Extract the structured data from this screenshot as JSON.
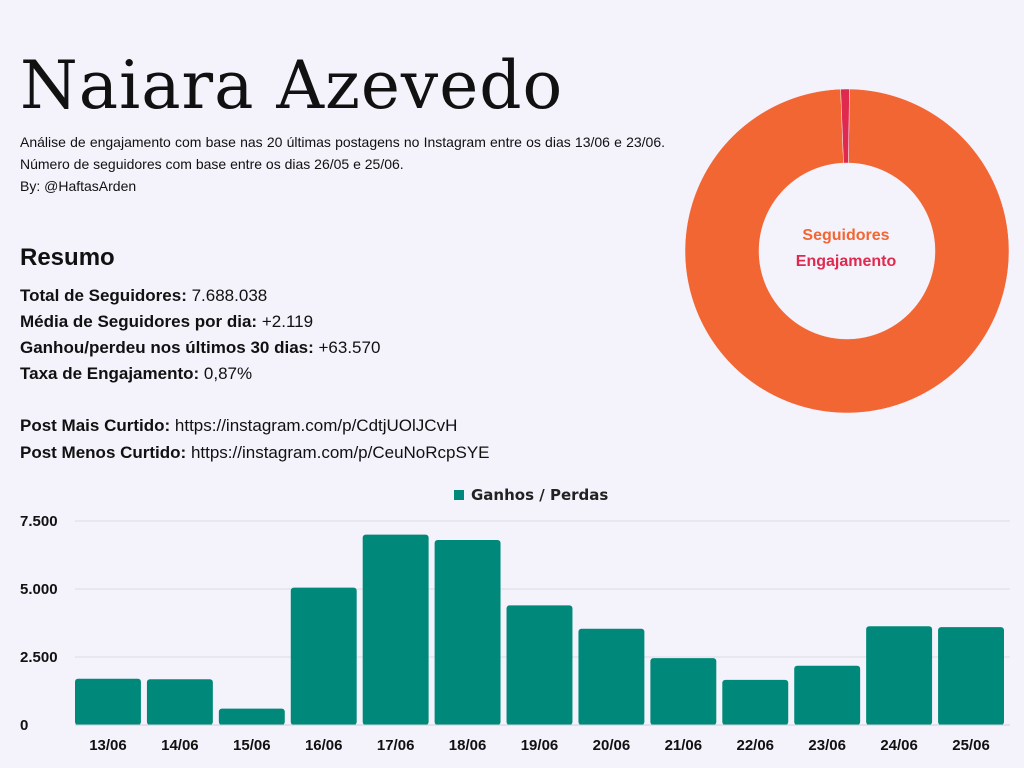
{
  "header": {
    "title": "Naiara Azevedo",
    "description": "Análise de engajamento com base nas 20 últimas postagens no Instagram entre os dias 13/06 e 23/06. Número de seguidores com base entre os dias 26/05 e 25/06.",
    "byline": "By: @HaftasArden"
  },
  "resumo": {
    "title": "Resumo",
    "stats": [
      {
        "label": "Total de Seguidores:",
        "value": " 7.688.038"
      },
      {
        "label": "Média de Seguidores por dia:",
        "value": " +2.119"
      },
      {
        "label": "Ganhou/perdeu nos últimos 30 dias:",
        "value": " +63.570"
      },
      {
        "label": "Taxa de Engajamento:",
        "value": " 0,87%"
      }
    ],
    "links": [
      {
        "label": "Post Mais Curtido:",
        "value": " https://instagram.com/p/CdtjUOlJCvH"
      },
      {
        "label": "Post Menos Curtido:",
        "value": " https://instagram.com/p/CeuNoRcpSYE"
      }
    ]
  },
  "chart_data": [
    {
      "type": "pie",
      "labels": [
        "Seguidores",
        "Engajamento"
      ],
      "values": [
        99.13,
        0.87
      ],
      "colors": [
        "#f26633",
        "#e0294f"
      ]
    },
    {
      "type": "bar",
      "categories": [
        "13/06",
        "14/06",
        "15/06",
        "16/06",
        "17/06",
        "18/06",
        "19/06",
        "20/06",
        "21/06",
        "22/06",
        "23/06",
        "24/06",
        "25/06"
      ],
      "series": [
        {
          "name": "Ganhos / Perdas",
          "values": [
            1700,
            1680,
            600,
            5050,
            7000,
            6800,
            4400,
            3540,
            2460,
            1660,
            2180,
            3630,
            3600
          ]
        }
      ],
      "ylim": [
        0,
        7500
      ],
      "yticks": [
        "0",
        "2.500",
        "5.000",
        "7.500"
      ],
      "ytick_values": [
        0,
        2500,
        5000,
        7500
      ],
      "grid": true,
      "legend": "top-center",
      "color": "#00897b"
    }
  ]
}
